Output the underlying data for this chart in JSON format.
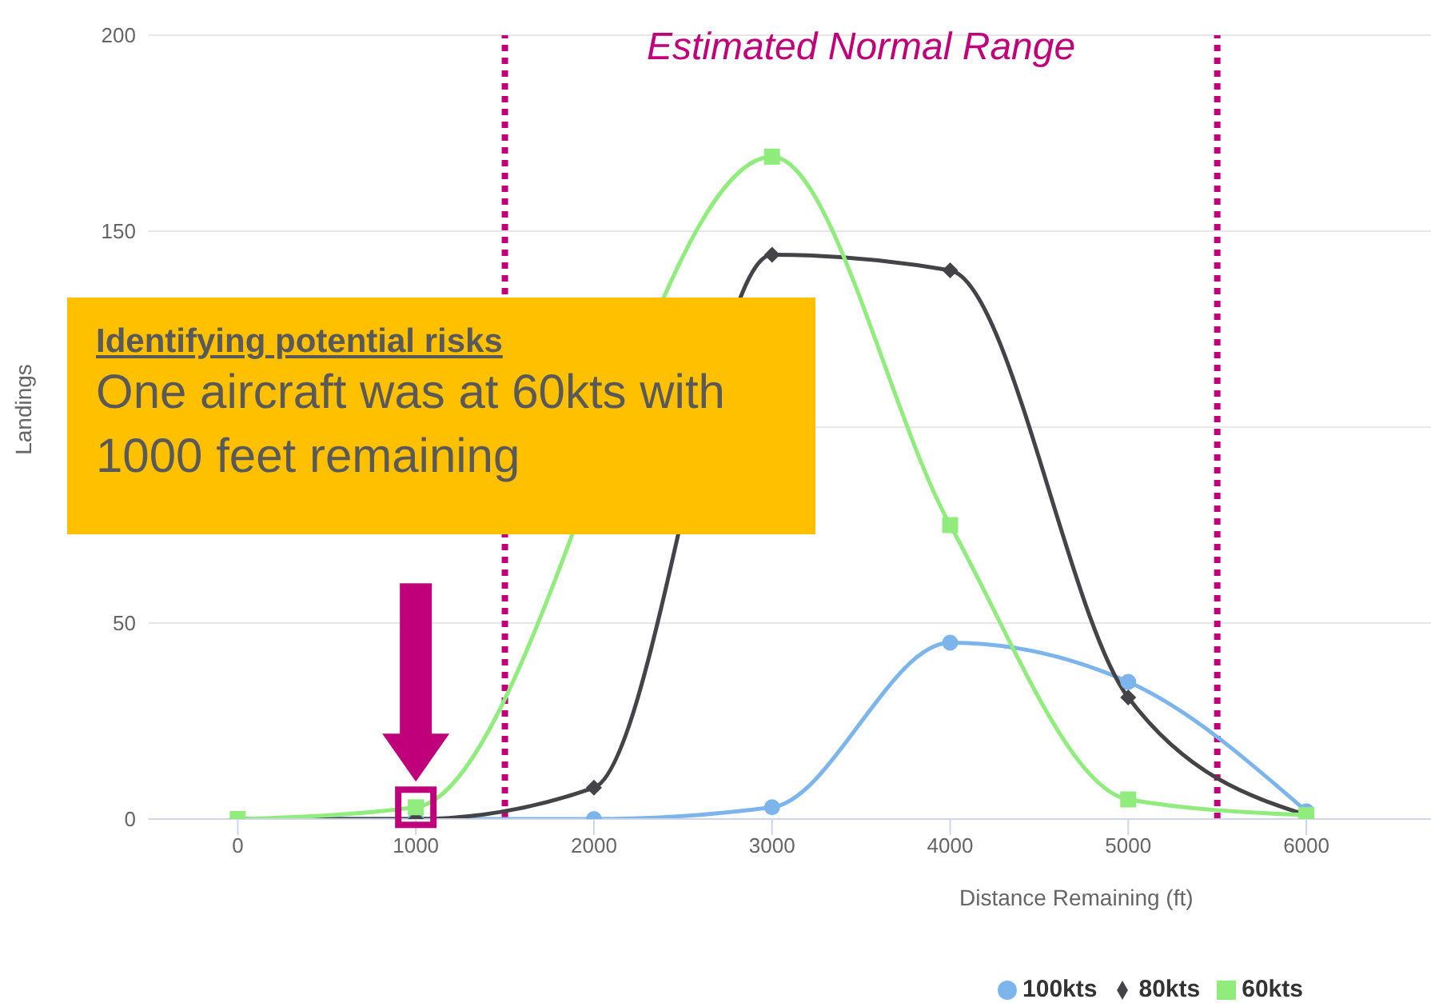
{
  "chart_data": {
    "type": "line",
    "xlabel": "Distance Remaining (ft)",
    "ylabel": "Landings",
    "x": [
      0,
      1000,
      2000,
      3000,
      4000,
      5000,
      6000
    ],
    "xlim": [
      -500,
      6700
    ],
    "xticks": [
      0,
      1000,
      2000,
      3000,
      4000,
      5000,
      6000
    ],
    "ylim": [
      0,
      200
    ],
    "yticks": [
      0,
      50,
      {
        "value": 100,
        "label": null
      },
      150,
      200
    ],
    "series": [
      {
        "name": "100kts",
        "color": "#7cb5ec",
        "marker": "circle",
        "values": [
          0,
          0,
          0,
          3,
          45,
          35,
          2
        ]
      },
      {
        "name": "80kts",
        "color": "#434348",
        "marker": "diamond",
        "values": [
          0,
          0,
          8,
          144,
          140,
          31,
          1
        ]
      },
      {
        "name": "60kts",
        "color": "#90ed7d",
        "marker": "square",
        "values": [
          0,
          3,
          null,
          169,
          75,
          5,
          1
        ]
      }
    ],
    "ref_lines": [
      {
        "axis": "x",
        "value": 1500,
        "color": "#c0007a",
        "line_style": "dotted"
      },
      {
        "axis": "x",
        "value": 5500,
        "color": "#c0007a",
        "line_style": "dotted"
      }
    ],
    "annotations": [
      "Estimated Normal Range",
      "Identifying potential risks",
      "One aircraft was at 60kts with 1000 feet remaining"
    ],
    "grid": "y",
    "legend": "bottom right"
  }
}
